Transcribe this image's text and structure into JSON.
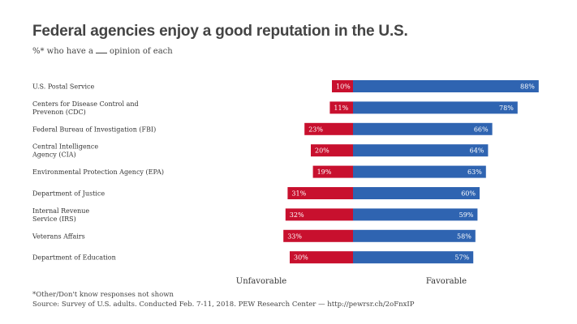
{
  "header": {
    "title": "Federal agencies enjoy a good reputation in the U.S.",
    "subtitle_before": "%* who have a",
    "subtitle_after": "opinion of each"
  },
  "footer": {
    "note": "*Other/Don't know responses not shown",
    "source": "Source: Survey of U.S. adults. Conducted Feb. 7-11, 2018. PEW Research Center — http://pewrsr.ch/2oFnxIP"
  },
  "chart_data": {
    "type": "bar",
    "orientation": "horizontal-diverging",
    "categories": [
      "U.S. Postal Service",
      "Centers for Disease Control and Prevenon (CDC)",
      "Federal Bureau of Investigation (FBI)",
      "Central Intelligence Agency (CIA)",
      "Environmental Protection Agency (EPA)",
      "Department of Justice",
      "Internal Revenue Service (IRS)",
      "Veterans Affairs",
      "Department of Education"
    ],
    "category_lines": [
      [
        "U.S. Postal Service"
      ],
      [
        "Centers for Disease Control and",
        "Prevenon (CDC)"
      ],
      [
        "Federal Bureau of Investigation (FBI)"
      ],
      [
        "Central Intelligence",
        "Agency (CIA)"
      ],
      [
        "Environmental Protection Agency (EPA)"
      ],
      [
        "Department of Justice"
      ],
      [
        "Internal Revenue",
        "Service (IRS)"
      ],
      [
        "Veterans Affairs"
      ],
      [
        "Department of Education"
      ]
    ],
    "series": [
      {
        "name": "Unfavorable",
        "color": "#c8102e",
        "values": [
          10,
          11,
          23,
          20,
          19,
          31,
          32,
          33,
          30
        ]
      },
      {
        "name": "Favorable",
        "color": "#2f64b1",
        "values": [
          88,
          78,
          66,
          64,
          63,
          60,
          59,
          58,
          57
        ]
      }
    ],
    "value_suffix": "%",
    "legend_placement": "bottom"
  }
}
